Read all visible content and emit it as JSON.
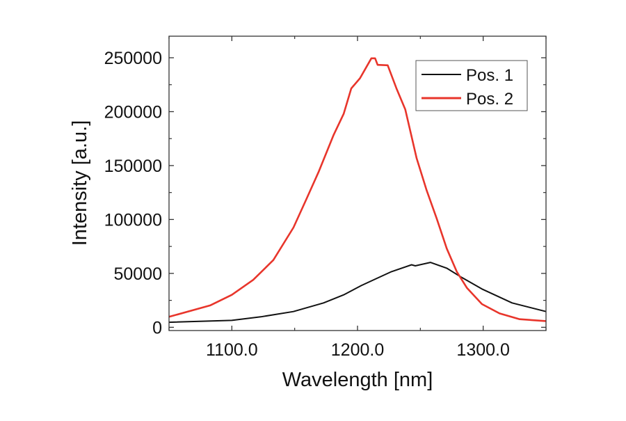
{
  "chart_data": {
    "type": "line",
    "title": "",
    "xlabel": "Wavelength [nm]",
    "ylabel": "Intensity [a.u.]",
    "xlim": [
      1050,
      1350
    ],
    "ylim": [
      -3000,
      270000
    ],
    "xticks": [
      1100,
      1200,
      1300
    ],
    "xtick_labels": [
      "1100.0",
      "1200.0",
      "1300.0"
    ],
    "xminor": [
      1050,
      1150,
      1250,
      1350
    ],
    "yticks": [
      0,
      50000,
      100000,
      150000,
      200000,
      250000
    ],
    "ytick_labels": [
      "0",
      "50000",
      "100000",
      "150000",
      "200000",
      "250000"
    ],
    "yminor": [
      25000,
      75000,
      125000,
      175000,
      225000
    ],
    "grid": false,
    "legend_position": "top-right",
    "series": [
      {
        "name": "Pos. 1",
        "color": "#111111",
        "x": [
          1050,
          1100,
          1123,
          1149,
          1173,
          1189,
          1203,
          1213,
          1227,
          1243,
          1246,
          1258,
          1271,
          1283,
          1299,
          1323,
          1350
        ],
        "y": [
          4700,
          6450,
          9700,
          14600,
          22600,
          30100,
          38700,
          44100,
          51600,
          58000,
          57000,
          60200,
          54800,
          46200,
          35500,
          22600,
          14600
        ]
      },
      {
        "name": "Pos. 2",
        "color": "#e8352b",
        "x": [
          1050,
          1083,
          1100,
          1117,
          1133,
          1149,
          1159,
          1169,
          1181,
          1189,
          1195,
          1202,
          1211,
          1214,
          1216,
          1224,
          1231,
          1238,
          1247,
          1255,
          1263,
          1271,
          1279,
          1287,
          1299,
          1313,
          1329,
          1350
        ],
        "y": [
          9700,
          20400,
          30100,
          44000,
          62400,
          92500,
          118000,
          144000,
          178500,
          198000,
          221500,
          231000,
          249500,
          249500,
          243400,
          243000,
          221500,
          202000,
          157000,
          127000,
          101000,
          73000,
          51600,
          36600,
          21500,
          12900,
          7500,
          5800
        ]
      }
    ]
  }
}
